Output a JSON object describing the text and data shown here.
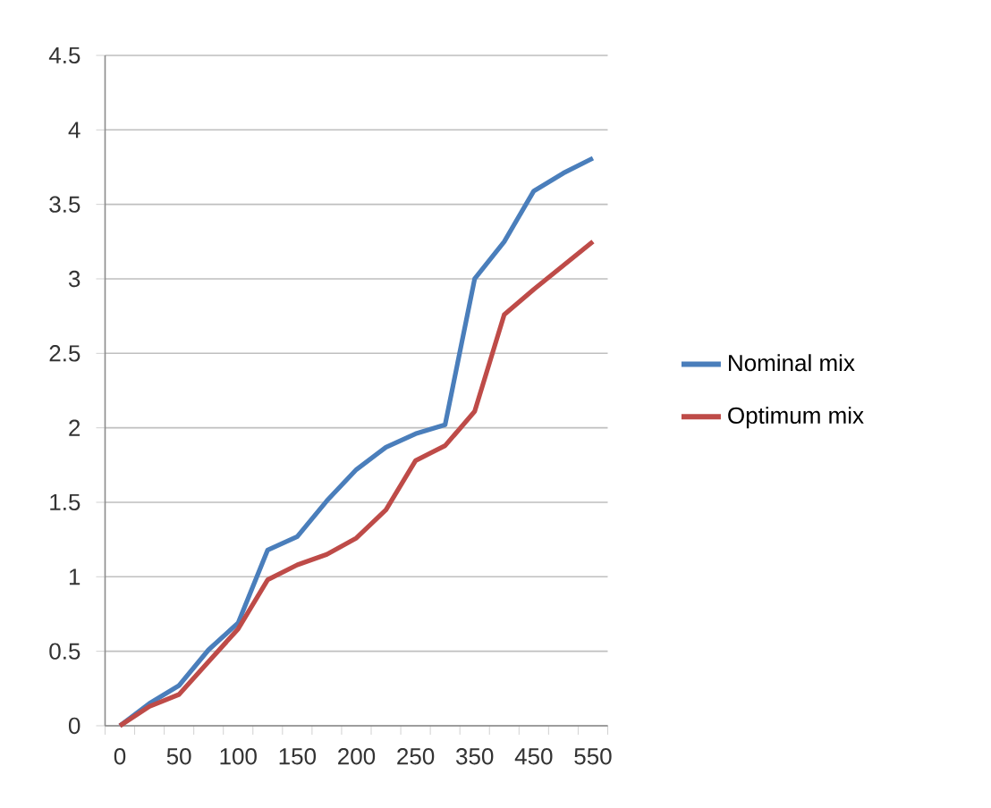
{
  "chart_data": {
    "type": "line",
    "categories": [
      "0",
      null,
      "50",
      null,
      "100",
      null,
      "150",
      null,
      "200",
      null,
      "250",
      null,
      "350",
      null,
      "450",
      null,
      "550"
    ],
    "series": [
      {
        "name": "Nominal mix",
        "color": "#4a7ebb",
        "values": [
          0,
          0.15,
          0.27,
          0.51,
          0.69,
          1.18,
          1.27,
          1.51,
          1.72,
          1.87,
          1.96,
          2.02,
          3.0,
          3.25,
          3.59,
          3.71,
          3.81
        ]
      },
      {
        "name": "Optimum mix",
        "color": "#be4b48",
        "values": [
          0,
          0.13,
          0.21,
          0.43,
          0.65,
          0.98,
          1.08,
          1.15,
          1.26,
          1.45,
          1.78,
          1.88,
          2.11,
          2.76,
          2.93,
          3.09,
          3.25
        ]
      }
    ],
    "ylim": [
      0,
      4.5
    ],
    "yticks": [
      0,
      0.5,
      1,
      1.5,
      2,
      2.5,
      3,
      3.5,
      4,
      4.5
    ],
    "grid": "y",
    "legend": "right",
    "marker": "none",
    "line_style": "solid"
  }
}
